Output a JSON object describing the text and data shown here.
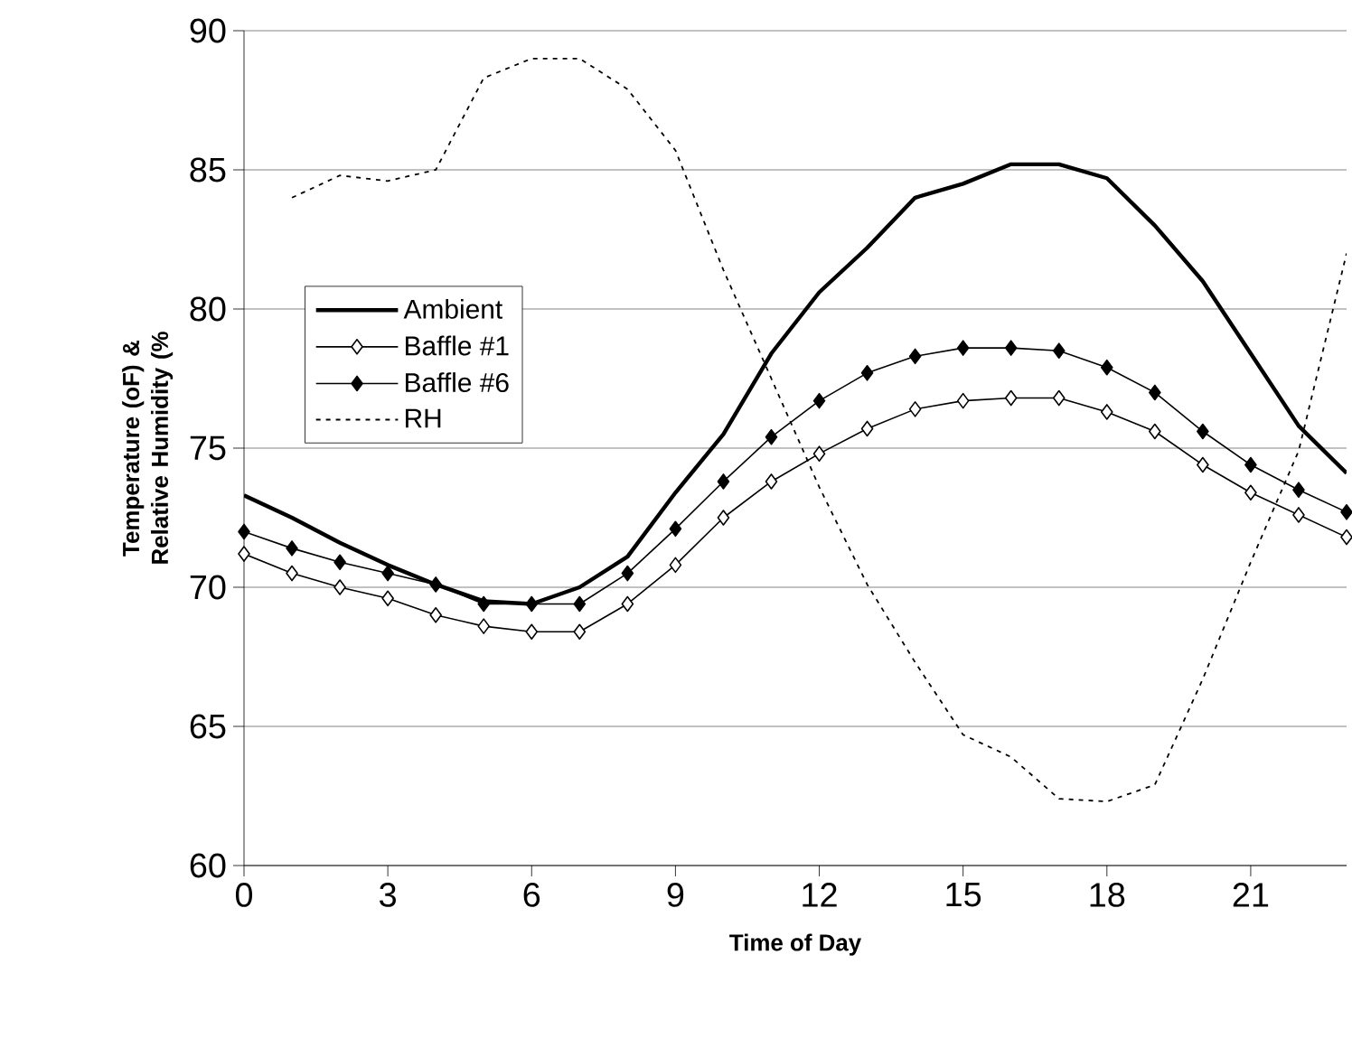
{
  "chart_data": {
    "type": "line",
    "xlabel": "Time of Day",
    "ylabel": "Temperature (oF) & Relative Humidity (%",
    "x": [
      0,
      1,
      2,
      3,
      4,
      5,
      6,
      7,
      8,
      9,
      10,
      11,
      12,
      13,
      14,
      15,
      16,
      17,
      18,
      19,
      20,
      21,
      22,
      23
    ],
    "series": [
      {
        "name": "Ambient",
        "color": "#000000",
        "marker": "none",
        "line_style": "solid",
        "values": [
          73.3,
          72.5,
          71.6,
          70.8,
          70.1,
          69.5,
          69.4,
          70.0,
          71.1,
          73.4,
          75.5,
          78.4,
          80.6,
          82.2,
          84.0,
          84.5,
          85.2,
          85.2,
          84.7,
          83.0,
          81.0,
          78.4,
          75.8,
          74.1
        ]
      },
      {
        "name": "Baffle #1",
        "color": "#000000",
        "marker": "diamond",
        "line_style": "solid",
        "values": [
          71.2,
          70.5,
          70.0,
          69.6,
          69.0,
          68.6,
          68.4,
          68.4,
          69.4,
          70.8,
          72.5,
          73.8,
          74.8,
          75.7,
          76.4,
          76.7,
          76.8,
          76.8,
          76.3,
          75.6,
          74.4,
          73.4,
          72.6,
          71.8
        ]
      },
      {
        "name": "Baffle #6",
        "color": "#000000",
        "marker": "diamond",
        "line_style": "solid",
        "values": [
          72.0,
          71.4,
          70.9,
          70.5,
          70.1,
          69.4,
          69.4,
          69.4,
          70.5,
          72.1,
          73.8,
          75.4,
          76.7,
          77.7,
          78.3,
          78.6,
          78.6,
          78.5,
          77.9,
          77.0,
          75.6,
          74.4,
          73.5,
          72.7
        ]
      },
      {
        "name": "RH",
        "color": "#000000",
        "marker": "none",
        "line_style": "dotted",
        "values": [
          null,
          84.0,
          84.8,
          84.6,
          85.0,
          88.3,
          89.0,
          89.0,
          87.9,
          85.7,
          81.4,
          77.5,
          73.6,
          70.1,
          67.3,
          64.7,
          63.9,
          62.4,
          62.3,
          62.9,
          66.7,
          70.9,
          74.9,
          82.0
        ]
      }
    ],
    "xlim": [
      0,
      23
    ],
    "xticks": [
      0,
      3,
      6,
      9,
      12,
      15,
      18,
      21
    ],
    "ylim": [
      60,
      90
    ],
    "yticks": [
      60,
      65,
      70,
      75,
      80,
      85,
      90
    ],
    "grid": "y",
    "legend": "left"
  }
}
